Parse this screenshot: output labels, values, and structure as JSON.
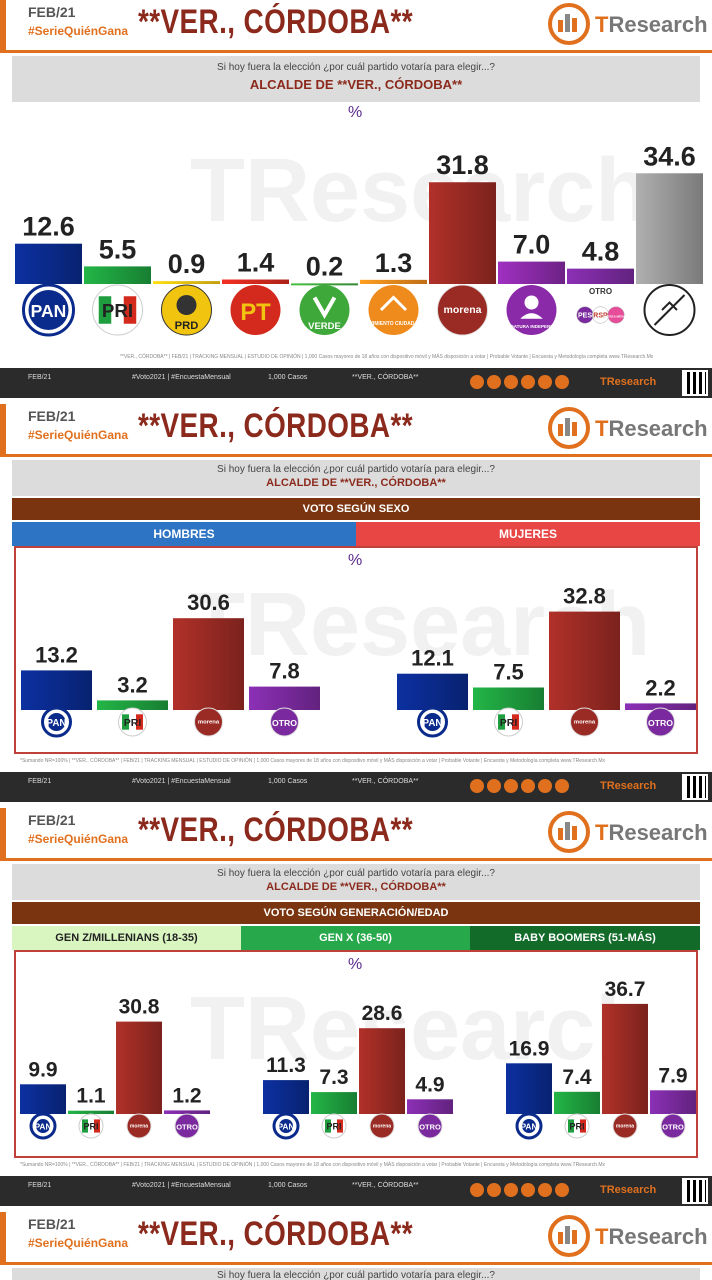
{
  "header": {
    "date": "FEB/21",
    "hashtag": "#SerieQuiénGana",
    "title": "**VER., CÓRDOBA**",
    "brand_t": "T",
    "brand_rest": "Research"
  },
  "question": "Si hoy fuera la elección ¿por cuál partido votaría para elegir...?",
  "question_short": "Si hoy fuera la elección ¿por cuál partido votaría para elegir...?",
  "subtitle": "ALCALDE DE **VER., CÓRDOBA**",
  "percent_symbol": "%",
  "otro_label": "OTRO",
  "footnote_top": "**VER., CÓRDOBA** | FEB/21 | TRACKING MENSUAL | ESTUDIO DE OPINIÓN | 1,000 Casos mayores de 18 años con dispositivo móvil y MÁS disposición a votar | Probable Votante | Encuesta y Metodología completa www.TResearch.Mx",
  "footnote_mid": "*Sumando NR=100% | **VER., CÓRDOBA** | FEB/21 | TRACKING MENSUAL | ESTUDIO DE OPINIÓN | 1,000 Casos mayores de 18 años con dispositivo móvil y MÁS disposición a votar | Probable Votante | Encuesta y Metodología completa www.TResearch.Mx",
  "footer": {
    "date": "FEB/21",
    "tags": "#Voto2021 | #EncuestaMensual",
    "cases": "1,000 Casos",
    "place": "**VER., CÓRDOBA**",
    "brand": "TResearch"
  },
  "sections": {
    "sexo": {
      "banner": "VOTO SEGÚN SEXO",
      "groups": [
        "HOMBRES",
        "MUJERES"
      ]
    },
    "edad": {
      "banner": "VOTO SEGÚN GENERACIÓN/EDAD",
      "groups": [
        "GEN Z/MILLENIANS (18-35)",
        "GEN X (36-50)",
        "BABY BOOMERS (51-MÁS)"
      ]
    }
  },
  "colors": {
    "PAN": "#0a2a8c",
    "PRI": "#1e9e3e",
    "PRD": "#f1c40f",
    "PT": "#d42a1e",
    "VERDE": "#3ea83a",
    "MC": "#ef8a1c",
    "MORENA": "#9a2b24",
    "IND": "#8a2aa8",
    "OTRO": "#7a2a9e",
    "NONE": "#999999",
    "accent": "#e0701e",
    "title": "#8b2a1c",
    "hombres": "#2d74c4",
    "mujeres": "#e84545",
    "genz": "#d9f5c0",
    "genx": "#27a84a",
    "boomers": "#136b2a"
  },
  "chart_data": [
    {
      "type": "bar",
      "title": "ALCALDE DE **VER., CÓRDOBA**",
      "ylabel": "%",
      "categories": [
        "PAN",
        "PRI",
        "PRD",
        "PT",
        "VERDE",
        "MOVIMIENTO CIUDADANO",
        "MORENA",
        "CANDIDATURA INDEPENDIENTE",
        "OTRO",
        "NINGUNO"
      ],
      "values": [
        12.6,
        5.5,
        0.9,
        1.4,
        0.2,
        1.3,
        31.8,
        7.0,
        4.8,
        34.6
      ],
      "value_labels": [
        "12.6",
        "5.5",
        "0.9",
        "1.4",
        "0.2",
        "1.3",
        "31.8",
        "7.0",
        "4.8",
        "34.6"
      ],
      "ylim": [
        0,
        40
      ]
    },
    {
      "type": "bar",
      "title": "VOTO SEGÚN SEXO",
      "categories": [
        "PAN",
        "PRI",
        "MORENA",
        "OTRO"
      ],
      "series": [
        {
          "name": "HOMBRES",
          "values": [
            13.2,
            3.2,
            30.6,
            7.8
          ],
          "labels": [
            "13.2",
            "3.2",
            "30.6",
            "7.8"
          ]
        },
        {
          "name": "MUJERES",
          "values": [
            12.1,
            7.5,
            32.8,
            2.2
          ],
          "labels": [
            "12.1",
            "7.5",
            "32.8",
            "2.2"
          ]
        }
      ],
      "ylim": [
        0,
        40
      ]
    },
    {
      "type": "bar",
      "title": "VOTO SEGÚN GENERACIÓN/EDAD",
      "categories": [
        "PAN",
        "PRI",
        "MORENA",
        "OTRO"
      ],
      "series": [
        {
          "name": "GEN Z/MILLENIANS (18-35)",
          "values": [
            9.9,
            1.1,
            30.8,
            1.2
          ],
          "labels": [
            "9.9",
            "1.1",
            "30.8",
            "1.2"
          ]
        },
        {
          "name": "GEN X (36-50)",
          "values": [
            11.3,
            7.3,
            28.6,
            4.9
          ],
          "labels": [
            "11.3",
            "7.3",
            "28.6",
            "4.9"
          ]
        },
        {
          "name": "BABY BOOMERS (51-MÁS)",
          "values": [
            16.9,
            7.4,
            36.7,
            7.9
          ],
          "labels": [
            "16.9",
            "7.4",
            "36.7",
            "7.9"
          ]
        }
      ],
      "ylim": [
        0,
        40
      ]
    }
  ],
  "party_logos": {
    "PAN": "PAN",
    "PRI": "PRI",
    "PRD": "PRD",
    "PT": "PT",
    "VERDE": "VERDE",
    "MC": "MOVIMIENTO CIUDADANO",
    "MORENA": "morena",
    "IND": "CANDIDATURA INDEPENDIENTE",
    "PES": "PES",
    "RSP": "RSP",
    "FXM": "FUERZA MÉXICO"
  }
}
